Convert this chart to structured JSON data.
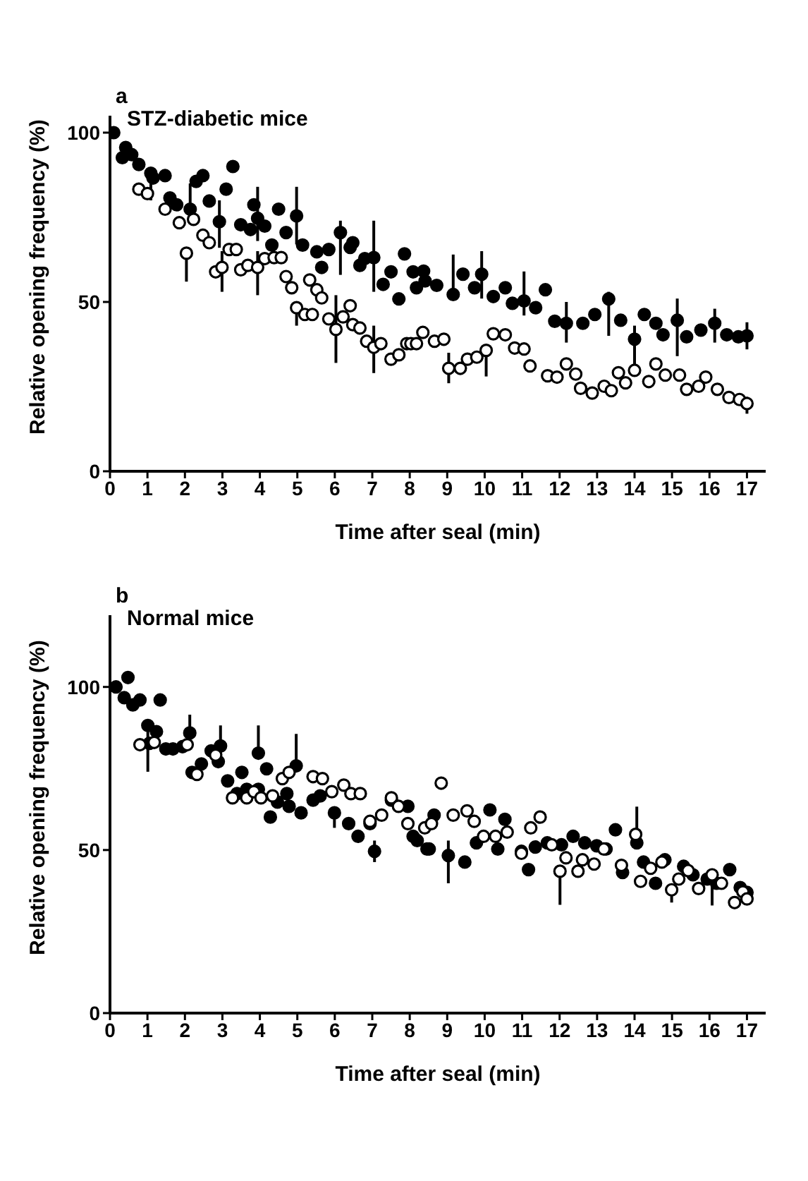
{
  "chart_data": [
    {
      "type": "scatter",
      "title": "STZ-diabetic mice",
      "annotations": [
        "a"
      ],
      "xlabel": "Time after seal (min)",
      "ylabel": "Relative opening frequency (%)",
      "xlim": [
        0,
        17.5
      ],
      "xticks": [
        0,
        1,
        2,
        3,
        4,
        5,
        6,
        7,
        8,
        9,
        10,
        11,
        12,
        13,
        14,
        15,
        16,
        17
      ],
      "ylim": [
        0,
        105
      ],
      "yticks": [
        0,
        50,
        100
      ],
      "marker": "circle",
      "series": [
        {
          "color": "#000000",
          "x": [
            0.1,
            0.33,
            0.42,
            0.58,
            0.77,
            1.09,
            1.15,
            1.47,
            1.6,
            1.78,
            2.14,
            2.3,
            2.48,
            2.65,
            2.92,
            3.1,
            3.28,
            3.49,
            3.75,
            3.84,
            3.94,
            4.13,
            4.32,
            4.5,
            4.7,
            4.98,
            5.14,
            5.52,
            5.65,
            5.84,
            6.15,
            6.41,
            6.48,
            6.67,
            6.8,
            7.04,
            7.29,
            7.5,
            7.71,
            7.86,
            8.09,
            8.18,
            8.37,
            8.41,
            8.72,
            9.16,
            9.42,
            9.73,
            9.92,
            10.23,
            10.55,
            10.74,
            11.05,
            11.36,
            11.62,
            11.87,
            12.18,
            12.62,
            12.94,
            13.31,
            13.63,
            14.0,
            14.26,
            14.57,
            14.76,
            15.14,
            15.39,
            15.77,
            16.14,
            16.46,
            16.77,
            17
          ],
          "values": [
            100,
            92.6,
            95.6,
            93.5,
            90.6,
            88,
            86.6,
            87.3,
            80.7,
            78.7,
            77.4,
            85.6,
            87.3,
            79.8,
            73.7,
            83.3,
            90,
            72.8,
            71.4,
            78.7,
            74.7,
            72.4,
            66.8,
            77.4,
            70.5,
            75.4,
            66.8,
            64.8,
            60.2,
            65.5,
            70.5,
            66.1,
            67.5,
            60.8,
            62.8,
            63.1,
            55.2,
            58.9,
            50.9,
            64.2,
            58.9,
            54.2,
            59.1,
            56.2,
            54.9,
            52.2,
            58.2,
            54.2,
            58.2,
            51.6,
            54.2,
            49.6,
            50.3,
            48.3,
            53.6,
            44.3,
            43.7,
            43.7,
            46.3,
            50.9,
            44.6,
            39,
            46.3,
            43.7,
            40.3,
            44.6,
            39.7,
            41.7,
            43.7,
            40.3,
            39.7,
            40
          ],
          "errors": [
            null,
            null,
            null,
            null,
            null,
            [
              80,
              88
            ],
            null,
            null,
            null,
            null,
            [
              73,
              85
            ],
            null,
            null,
            null,
            [
              66,
              80
            ],
            null,
            null,
            null,
            null,
            null,
            [
              68,
              84
            ],
            null,
            null,
            null,
            null,
            [
              67,
              84
            ],
            null,
            null,
            null,
            null,
            [
              58,
              74
            ],
            null,
            null,
            null,
            null,
            [
              53,
              74
            ],
            null,
            null,
            null,
            null,
            null,
            null,
            null,
            null,
            null,
            [
              52,
              64
            ],
            null,
            null,
            [
              51,
              65
            ],
            null,
            null,
            null,
            [
              46,
              59
            ],
            null,
            null,
            null,
            [
              38,
              50
            ],
            null,
            null,
            [
              40,
              53
            ],
            null,
            [
              32,
              43
            ],
            null,
            null,
            null,
            [
              34,
              51
            ],
            null,
            null,
            [
              38,
              48
            ],
            null,
            null,
            [
              36,
              44
            ]
          ]
        },
        {
          "color": "#ffffff",
          "x": [
            0.77,
            1.0,
            1.47,
            1.85,
            2.04,
            2.23,
            2.48,
            2.65,
            2.82,
            2.99,
            3.18,
            3.37,
            3.49,
            3.68,
            3.94,
            4.13,
            4.38,
            4.57,
            4.7,
            4.85,
            4.98,
            5.2,
            5.33,
            5.4,
            5.52,
            5.65,
            5.84,
            6.03,
            6.22,
            6.41,
            6.48,
            6.67,
            6.85,
            7.04,
            7.23,
            7.5,
            7.71,
            7.92,
            8.03,
            8.18,
            8.35,
            8.66,
            8.91,
            9.04,
            9.35,
            9.54,
            9.79,
            10.04,
            10.23,
            10.55,
            10.8,
            11.05,
            11.21,
            11.68,
            11.93,
            12.18,
            12.43,
            12.56,
            12.87,
            13.19,
            13.38,
            13.57,
            13.76,
            14.0,
            14.38,
            14.57,
            14.82,
            15.2,
            15.39,
            15.71,
            15.9,
            16.21,
            16.52,
            16.8,
            17
          ],
          "values": [
            83.3,
            82,
            77.4,
            73.4,
            64.4,
            74.4,
            69.7,
            67.5,
            58.9,
            60.2,
            65.5,
            65.5,
            59.5,
            60.8,
            60.2,
            62.8,
            63.1,
            63.1,
            57.5,
            54.2,
            48.3,
            46.3,
            56.5,
            46.3,
            53.6,
            51.2,
            45,
            41.9,
            45.6,
            48.9,
            43.3,
            42.3,
            38.4,
            36.6,
            37.7,
            33.1,
            34.4,
            37.7,
            37.7,
            37.7,
            41,
            38.4,
            39,
            30.4,
            30.4,
            33.1,
            33.7,
            35.7,
            40.6,
            40.3,
            36.4,
            36.1,
            31.1,
            28.2,
            27.8,
            31.7,
            28.7,
            24.5,
            23.1,
            25.1,
            23.8,
            29.1,
            26.1,
            29.8,
            26.5,
            31.7,
            28.4,
            28.4,
            24.2,
            25.1,
            27.8,
            24.2,
            21.8,
            21.2,
            20
          ],
          "errors": [
            null,
            null,
            null,
            null,
            [
              56,
              64.4
            ],
            null,
            null,
            null,
            null,
            [
              53,
              65
            ],
            null,
            null,
            null,
            null,
            [
              52,
              65
            ],
            null,
            null,
            null,
            null,
            null,
            [
              43,
              49
            ],
            null,
            null,
            null,
            null,
            null,
            null,
            [
              32,
              52
            ],
            null,
            null,
            null,
            null,
            null,
            [
              29,
              43
            ],
            null,
            null,
            null,
            null,
            null,
            null,
            null,
            null,
            null,
            [
              26,
              35
            ],
            null,
            null,
            null,
            [
              28,
              36
            ],
            null,
            null,
            null,
            null,
            null,
            null,
            null,
            null,
            null,
            null,
            null,
            null,
            null,
            null,
            null,
            [
              28,
              34
            ],
            null,
            null,
            null,
            null,
            null,
            null,
            null,
            null,
            null,
            null,
            [
              17,
              22
            ]
          ]
        }
      ]
    },
    {
      "type": "scatter",
      "title": "Normal mice",
      "annotations": [
        "b"
      ],
      "xlabel": "Time after seal (min)",
      "ylabel": "Relative opening frequency (%)",
      "xlim": [
        0,
        17.5
      ],
      "xticks": [
        0,
        1,
        2,
        3,
        4,
        5,
        6,
        7,
        8,
        9,
        10,
        11,
        12,
        13,
        14,
        15,
        16,
        17
      ],
      "ylim": [
        0,
        122
      ],
      "yticks": [
        0,
        50,
        100
      ],
      "marker": "circle",
      "series": [
        {
          "color": "#000000",
          "x": [
            0.16,
            0.38,
            0.48,
            0.61,
            0.8,
            1.01,
            1.05,
            1.24,
            1.34,
            1.49,
            1.68,
            1.94,
            2.13,
            2.19,
            2.44,
            2.7,
            2.89,
            2.95,
            3.14,
            3.39,
            3.52,
            3.65,
            3.96,
            3.96,
            4.18,
            4.28,
            4.47,
            4.72,
            4.78,
            4.97,
            5.1,
            5.42,
            5.61,
            5.99,
            6.37,
            6.62,
            6.94,
            7.06,
            7.51,
            7.95,
            8.09,
            8.2,
            8.46,
            8.52,
            8.65,
            9.03,
            9.47,
            9.78,
            10.14,
            10.35,
            10.54,
            10.98,
            11.17,
            11.35,
            11.67,
            12.05,
            12.36,
            12.67,
            12.99,
            13.24,
            13.49,
            13.68,
            14.06,
            14.24,
            14.56,
            14.81,
            15.31,
            15.56,
            15.94,
            16.19,
            16.54,
            16.82,
            17
          ],
          "values": [
            100,
            96.7,
            102.9,
            94.5,
            96,
            88.2,
            82.7,
            86.3,
            96,
            81,
            81,
            81.7,
            85.9,
            73.8,
            76.4,
            80.4,
            77.1,
            81.9,
            71.2,
            67.3,
            73.8,
            68.6,
            79.7,
            68.6,
            74.9,
            60.1,
            64.7,
            67.3,
            63.4,
            75.8,
            61.4,
            65.3,
            66.6,
            61.4,
            58.1,
            54.2,
            58.1,
            49.6,
            65.3,
            63.4,
            54.2,
            52.9,
            50.3,
            50.3,
            60.7,
            48.3,
            46.3,
            52.2,
            62.3,
            50.3,
            59.4,
            49.6,
            44,
            50.9,
            52.2,
            51.6,
            54.2,
            52.2,
            51.3,
            50.3,
            56.2,
            43.1,
            52.2,
            46.3,
            39.8,
            47,
            45,
            42.4,
            41.1,
            39.8,
            44,
            38.5,
            37
          ],
          "errors": [
            null,
            null,
            null,
            null,
            null,
            [
              74,
              88.2
            ],
            null,
            null,
            null,
            null,
            null,
            null,
            [
              85.9,
              91.5
            ],
            null,
            null,
            null,
            null,
            [
              79.7,
              88.2
            ],
            null,
            null,
            null,
            null,
            [
              79.7,
              88.2
            ],
            null,
            null,
            null,
            null,
            null,
            null,
            [
              75.8,
              85.6
            ],
            null,
            null,
            null,
            [
              56.8,
              61.4
            ],
            null,
            null,
            null,
            [
              46.3,
              52.9
            ],
            null,
            null,
            null,
            null,
            null,
            null,
            null,
            [
              39.8,
              52.9
            ],
            null,
            null,
            null,
            null,
            null,
            null,
            null,
            null,
            null,
            null,
            null,
            null,
            null,
            null,
            null,
            null,
            [
              52.2,
              63.3
            ],
            null,
            null,
            null,
            null,
            null,
            null,
            null,
            null,
            null,
            null
          ]
        },
        {
          "color": "#ffffff",
          "x": [
            0.8,
            1.18,
            2.06,
            2.32,
            2.82,
            3.27,
            3.65,
            3.84,
            4.03,
            4.34,
            4.6,
            4.78,
            5.42,
            5.67,
            5.92,
            6.24,
            6.43,
            6.68,
            6.94,
            7.25,
            7.51,
            7.7,
            7.95,
            8.4,
            8.58,
            8.84,
            9.16,
            9.53,
            9.72,
            9.97,
            10.29,
            10.6,
            10.98,
            11.23,
            11.48,
            11.79,
            12.01,
            12.17,
            12.49,
            12.61,
            12.92,
            13.18,
            13.65,
            14.03,
            14.16,
            14.43,
            14.73,
            14.99,
            15.18,
            15.43,
            15.71,
            16.07,
            16.32,
            16.67,
            16.89,
            17
          ],
          "values": [
            82.3,
            83,
            82.3,
            73.2,
            79.1,
            66,
            66,
            67.9,
            66,
            66.6,
            71.9,
            73.8,
            72.5,
            71.9,
            67.9,
            69.9,
            67.3,
            67.3,
            58.8,
            60.7,
            66,
            63.4,
            58.1,
            56.8,
            58.1,
            70.5,
            60.7,
            62,
            58.8,
            54.2,
            54.2,
            55.5,
            49,
            56.8,
            60.1,
            51.6,
            43.5,
            47.6,
            43.5,
            47,
            45.7,
            50.3,
            45.3,
            54.8,
            40.4,
            44.4,
            46.3,
            37.8,
            41.1,
            43.7,
            38.2,
            42.4,
            39.8,
            33.9,
            37.2,
            35
          ],
          "errors": [
            null,
            null,
            null,
            null,
            null,
            null,
            null,
            null,
            null,
            null,
            null,
            null,
            null,
            null,
            null,
            null,
            null,
            null,
            null,
            null,
            null,
            null,
            null,
            null,
            null,
            null,
            null,
            null,
            null,
            null,
            null,
            null,
            null,
            null,
            null,
            null,
            [
              33.2,
              43.5
            ],
            null,
            null,
            null,
            null,
            null,
            null,
            null,
            null,
            null,
            null,
            [
              33.9,
              37.8
            ],
            null,
            null,
            null,
            [
              33,
              42.4
            ],
            null,
            null,
            null,
            null
          ]
        }
      ]
    }
  ]
}
